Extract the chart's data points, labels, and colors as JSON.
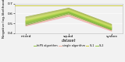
{
  "x_labels": [
    "mixed",
    "squad",
    "sysbox"
  ],
  "x_positions": [
    0,
    1,
    2
  ],
  "ylim": [
    0.4,
    0.7
  ],
  "yticks": [
    0.4,
    0.5,
    0.6,
    0.7
  ],
  "ylabel": "Negative log-likelihood",
  "xlabel": "dataset",
  "background": "#f2f2f2",
  "hline_y": 0.685,
  "hline_color": "#c8c830",
  "green_lines": [
    {
      "y": [
        0.48,
        0.595,
        0.43
      ]
    },
    {
      "y": [
        0.49,
        0.605,
        0.435
      ]
    },
    {
      "y": [
        0.495,
        0.608,
        0.438
      ]
    },
    {
      "y": [
        0.5,
        0.612,
        0.442
      ]
    },
    {
      "y": [
        0.505,
        0.615,
        0.445
      ]
    },
    {
      "y": [
        0.508,
        0.618,
        0.448
      ]
    },
    {
      "y": [
        0.512,
        0.62,
        0.45
      ]
    },
    {
      "y": [
        0.515,
        0.622,
        0.452
      ]
    },
    {
      "y": [
        0.518,
        0.625,
        0.455
      ]
    },
    {
      "y": [
        0.522,
        0.628,
        0.458
      ]
    },
    {
      "y": [
        0.525,
        0.63,
        0.46
      ]
    },
    {
      "y": [
        0.528,
        0.632,
        0.462
      ]
    },
    {
      "y": [
        0.532,
        0.635,
        0.465
      ]
    },
    {
      "y": [
        0.535,
        0.638,
        0.468
      ]
    },
    {
      "y": [
        0.54,
        0.64,
        0.472
      ]
    },
    {
      "y": [
        0.545,
        0.643,
        0.475
      ]
    },
    {
      "y": [
        0.55,
        0.647,
        0.478
      ]
    },
    {
      "y": [
        0.555,
        0.65,
        0.482
      ]
    },
    {
      "y": [
        0.56,
        0.653,
        0.485
      ]
    },
    {
      "y": [
        0.565,
        0.657,
        0.49
      ]
    }
  ],
  "green_colors": [
    "#6aa832",
    "#72b030",
    "#7ab834",
    "#80bc36",
    "#88c03a",
    "#90c43e",
    "#98c842",
    "#a0cc46",
    "#a8d04a",
    "#b0d44e",
    "#b8d852",
    "#c0dc56",
    "#c8e05a",
    "#cce05e",
    "#c8d85a",
    "#c0d056",
    "#b8c852",
    "#b0c04e",
    "#a8b84a",
    "#a0b046"
  ],
  "pink_lines": [
    {
      "y": [
        0.47,
        0.572,
        0.418
      ]
    },
    {
      "y": [
        0.475,
        0.578,
        0.422
      ]
    },
    {
      "y": [
        0.48,
        0.582,
        0.426
      ]
    },
    {
      "y": [
        0.485,
        0.586,
        0.43
      ]
    },
    {
      "y": [
        0.49,
        0.59,
        0.434
      ]
    },
    {
      "y": [
        0.495,
        0.593,
        0.438
      ]
    },
    {
      "y": [
        0.5,
        0.596,
        0.442
      ]
    },
    {
      "y": [
        0.505,
        0.6,
        0.446
      ]
    },
    {
      "y": [
        0.51,
        0.604,
        0.45
      ]
    },
    {
      "y": [
        0.515,
        0.608,
        0.454
      ]
    },
    {
      "y": [
        0.52,
        0.612,
        0.458
      ]
    },
    {
      "y": [
        0.525,
        0.615,
        0.462
      ]
    }
  ],
  "pink_colors": [
    "#f0a0a0",
    "#f0a8a0",
    "#f0b0a0",
    "#f0b8a0",
    "#f0c0a0",
    "#f0c8a0",
    "#f0d0a0",
    "#e8c898",
    "#e0c090",
    "#d8b888",
    "#d0b080",
    "#c8a878"
  ],
  "legend_items": [
    {
      "label": "htPS algorithm",
      "color": "#90c43e",
      "ls": "-"
    },
    {
      "label": "single algorithm",
      "color": "#f0b0a0",
      "ls": "-"
    },
    {
      "label": "SL1",
      "color": "#c8c830",
      "ls": "-"
    },
    {
      "label": "SL2",
      "color": "#90c43e",
      "ls": "-"
    }
  ]
}
